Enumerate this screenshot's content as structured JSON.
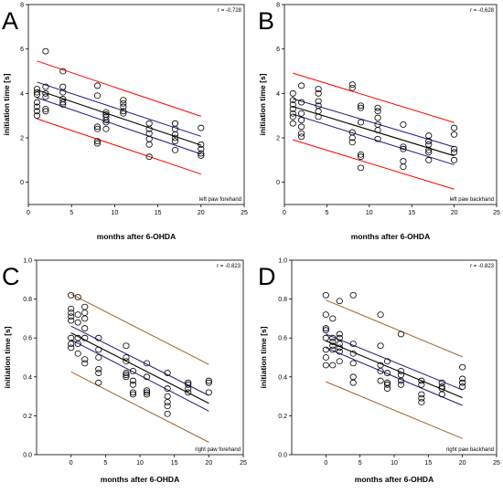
{
  "chart_data": [
    {
      "type": "scatter",
      "panel_letter": "A",
      "xlabel": "months after 6-OHDA",
      "ylabel": "initiation time [s]",
      "xlim": [
        0,
        25
      ],
      "ylim": [
        -1,
        8
      ],
      "xticks": [
        0,
        5,
        10,
        15,
        20,
        25
      ],
      "yticks": [
        0,
        2,
        4,
        6,
        8
      ],
      "xtick_labels": [
        "0",
        "5",
        "10",
        "15",
        "20",
        "25"
      ],
      "ytick_labels": [
        "0",
        "2",
        "4",
        "6",
        "8"
      ],
      "r_label": "r = -0,728",
      "annotation": "left paw forehand",
      "band_color": "#ff0000",
      "ci_color": "#1a1a80",
      "regression": {
        "intercept": 4.29,
        "slope": -0.131,
        "ci_half": [
          0.35,
          0.4
        ],
        "pi_half": 1.3,
        "x_range": [
          1,
          20
        ]
      },
      "points": [
        [
          1,
          4.2
        ],
        [
          1,
          4.05
        ],
        [
          1,
          3.95
        ],
        [
          1,
          3.6
        ],
        [
          1,
          3.4
        ],
        [
          1,
          3.2
        ],
        [
          1,
          3.0
        ],
        [
          2,
          5.9
        ],
        [
          2,
          4.3
        ],
        [
          2,
          4.0
        ],
        [
          2,
          3.85
        ],
        [
          2,
          3.3
        ],
        [
          2,
          3.2
        ],
        [
          4,
          5.0
        ],
        [
          4,
          4.3
        ],
        [
          4,
          4.05
        ],
        [
          4,
          3.75
        ],
        [
          4,
          3.6
        ],
        [
          4,
          3.5
        ],
        [
          8,
          4.35
        ],
        [
          8,
          3.9
        ],
        [
          8,
          2.5
        ],
        [
          8,
          2.4
        ],
        [
          8,
          1.85
        ],
        [
          8,
          1.75
        ],
        [
          9,
          3.15
        ],
        [
          9,
          3.05
        ],
        [
          9,
          2.95
        ],
        [
          9,
          2.8
        ],
        [
          9,
          2.7
        ],
        [
          9,
          2.4
        ],
        [
          11,
          3.7
        ],
        [
          11,
          3.55
        ],
        [
          11,
          3.4
        ],
        [
          11,
          3.2
        ],
        [
          11,
          3.1
        ],
        [
          14,
          2.65
        ],
        [
          14,
          2.4
        ],
        [
          14,
          2.2
        ],
        [
          14,
          1.95
        ],
        [
          14,
          1.7
        ],
        [
          14,
          1.15
        ],
        [
          17,
          2.65
        ],
        [
          17,
          2.4
        ],
        [
          17,
          2.15
        ],
        [
          17,
          2.0
        ],
        [
          17,
          1.85
        ],
        [
          17,
          1.45
        ],
        [
          20,
          2.45
        ],
        [
          20,
          1.7
        ],
        [
          20,
          1.5
        ],
        [
          20,
          1.3
        ],
        [
          20,
          1.2
        ]
      ]
    },
    {
      "type": "scatter",
      "panel_letter": "B",
      "xlabel": "months after 6-OHDA",
      "ylabel": "initiation time [s]",
      "xlim": [
        0,
        25
      ],
      "ylim": [
        -1,
        8
      ],
      "xticks": [
        0,
        5,
        10,
        15,
        20,
        25
      ],
      "yticks": [
        0,
        2,
        4,
        6,
        8
      ],
      "xtick_labels": [
        "0",
        "5",
        "10",
        "15",
        "20",
        "25"
      ],
      "ytick_labels": [
        "0",
        "2",
        "4",
        "6",
        "8"
      ],
      "r_label": "r = -0,628",
      "annotation": "left paw backhand",
      "band_color": "#ff0000",
      "ci_color": "#1a1a80",
      "regression": {
        "intercept": 3.53,
        "slope": -0.117,
        "ci_half": [
          0.35,
          0.4
        ],
        "pi_half": 1.5,
        "x_range": [
          1,
          20
        ]
      },
      "points": [
        [
          1,
          4.0
        ],
        [
          1,
          3.7
        ],
        [
          1,
          3.5
        ],
        [
          1,
          3.3
        ],
        [
          1,
          3.1
        ],
        [
          1,
          2.95
        ],
        [
          1,
          2.65
        ],
        [
          2,
          4.35
        ],
        [
          2,
          3.6
        ],
        [
          2,
          3.1
        ],
        [
          2,
          2.8
        ],
        [
          2,
          2.5
        ],
        [
          2,
          2.2
        ],
        [
          2,
          2.05
        ],
        [
          4,
          4.2
        ],
        [
          4,
          4.0
        ],
        [
          4,
          3.65
        ],
        [
          4,
          3.45
        ],
        [
          4,
          3.2
        ],
        [
          4,
          2.95
        ],
        [
          8,
          4.4
        ],
        [
          8,
          4.25
        ],
        [
          8,
          2.25
        ],
        [
          8,
          2.0
        ],
        [
          8,
          1.8
        ],
        [
          9,
          3.45
        ],
        [
          9,
          3.35
        ],
        [
          9,
          2.7
        ],
        [
          9,
          1.25
        ],
        [
          9,
          1.15
        ],
        [
          9,
          0.65
        ],
        [
          11,
          3.35
        ],
        [
          11,
          3.2
        ],
        [
          11,
          2.9
        ],
        [
          11,
          2.6
        ],
        [
          11,
          2.35
        ],
        [
          11,
          1.95
        ],
        [
          14,
          2.6
        ],
        [
          14,
          1.6
        ],
        [
          14,
          1.5
        ],
        [
          14,
          0.95
        ],
        [
          14,
          0.7
        ],
        [
          17,
          2.1
        ],
        [
          17,
          1.85
        ],
        [
          17,
          1.7
        ],
        [
          17,
          1.45
        ],
        [
          17,
          1.35
        ],
        [
          17,
          1.0
        ],
        [
          20,
          2.45
        ],
        [
          20,
          2.15
        ],
        [
          20,
          1.5
        ],
        [
          20,
          1.35
        ],
        [
          20,
          1.0
        ]
      ]
    },
    {
      "type": "scatter",
      "panel_letter": "C",
      "xlabel": "months after 6-OHDA",
      "ylabel": "initiation time [s]",
      "xlim": [
        -5,
        25
      ],
      "ylim": [
        0,
        1
      ],
      "xticks": [
        0,
        5,
        10,
        15,
        20,
        25
      ],
      "yticks": [
        0,
        0.2,
        0.4,
        0.6,
        0.8,
        1.0
      ],
      "xtick_labels": [
        "0",
        "5",
        "10",
        "15",
        "20",
        "25"
      ],
      "ytick_labels": [
        "0.0",
        "0.2",
        "0.4",
        "0.6",
        "0.8",
        "1.0"
      ],
      "r_label": "r = -0.823",
      "annotation": "right paw forehand",
      "band_color": "#a0622d",
      "ci_color": "#1a1a80",
      "regression": {
        "intercept": 0.626,
        "slope": -0.0181,
        "ci_half": [
          0.035,
          0.04
        ],
        "pi_half": 0.2,
        "x_range": [
          0,
          20
        ]
      },
      "points": [
        [
          0,
          0.82
        ],
        [
          0,
          0.75
        ],
        [
          0,
          0.73
        ],
        [
          0,
          0.71
        ],
        [
          0,
          0.69
        ],
        [
          0,
          0.6
        ],
        [
          0,
          0.57
        ],
        [
          0,
          0.55
        ],
        [
          1,
          0.81
        ],
        [
          1,
          0.72
        ],
        [
          1,
          0.68
        ],
        [
          1,
          0.6
        ],
        [
          1,
          0.57
        ],
        [
          1,
          0.52
        ],
        [
          2,
          0.76
        ],
        [
          2,
          0.73
        ],
        [
          2,
          0.7
        ],
        [
          2,
          0.65
        ],
        [
          2,
          0.6
        ],
        [
          2,
          0.49
        ],
        [
          2,
          0.47
        ],
        [
          4,
          0.6
        ],
        [
          4,
          0.54
        ],
        [
          4,
          0.5
        ],
        [
          4,
          0.44
        ],
        [
          4,
          0.42
        ],
        [
          4,
          0.37
        ],
        [
          8,
          0.56
        ],
        [
          8,
          0.5
        ],
        [
          8,
          0.48
        ],
        [
          8,
          0.42
        ],
        [
          8,
          0.41
        ],
        [
          8,
          0.4
        ],
        [
          9,
          0.43
        ],
        [
          9,
          0.38
        ],
        [
          9,
          0.36
        ],
        [
          9,
          0.32
        ],
        [
          9,
          0.31
        ],
        [
          11,
          0.47
        ],
        [
          11,
          0.4
        ],
        [
          11,
          0.33
        ],
        [
          11,
          0.32
        ],
        [
          11,
          0.31
        ],
        [
          14,
          0.42
        ],
        [
          14,
          0.34
        ],
        [
          14,
          0.3
        ],
        [
          14,
          0.27
        ],
        [
          14,
          0.25
        ],
        [
          14,
          0.21
        ],
        [
          17,
          0.37
        ],
        [
          17,
          0.36
        ],
        [
          17,
          0.34
        ],
        [
          17,
          0.32
        ],
        [
          20,
          0.38
        ],
        [
          20,
          0.37
        ],
        [
          20,
          0.32
        ]
      ]
    },
    {
      "type": "scatter",
      "panel_letter": "D",
      "xlabel": "months after 6-OHDA",
      "ylabel": "initiation time [s]",
      "xlim": [
        -5,
        25
      ],
      "ylim": [
        0,
        1
      ],
      "xticks": [
        0,
        5,
        10,
        15,
        20,
        25
      ],
      "yticks": [
        0,
        0.2,
        0.4,
        0.6,
        0.8,
        1.0
      ],
      "xtick_labels": [
        "0",
        "5",
        "10",
        "15",
        "20",
        "25"
      ],
      "ytick_labels": [
        "0.0",
        "0.2",
        "0.4",
        "0.6",
        "0.8",
        "1.0"
      ],
      "r_label": "r = -0.823",
      "annotation": "right paw backhand",
      "band_color": "#a0622d",
      "ci_color": "#1a1a80",
      "regression": {
        "intercept": 0.585,
        "slope": -0.0146,
        "ci_half": [
          0.035,
          0.04
        ],
        "pi_half": 0.21,
        "x_range": [
          0,
          20
        ]
      },
      "points": [
        [
          0,
          0.82
        ],
        [
          0,
          0.72
        ],
        [
          0,
          0.65
        ],
        [
          0,
          0.64
        ],
        [
          0,
          0.6
        ],
        [
          0,
          0.54
        ],
        [
          0,
          0.5
        ],
        [
          0,
          0.46
        ],
        [
          1,
          0.7
        ],
        [
          1,
          0.6
        ],
        [
          1,
          0.58
        ],
        [
          1,
          0.56
        ],
        [
          1,
          0.54
        ],
        [
          1,
          0.46
        ],
        [
          2,
          0.79
        ],
        [
          2,
          0.62
        ],
        [
          2,
          0.6
        ],
        [
          2,
          0.57
        ],
        [
          2,
          0.55
        ],
        [
          2,
          0.53
        ],
        [
          2,
          0.48
        ],
        [
          4,
          0.82
        ],
        [
          4,
          0.57
        ],
        [
          4,
          0.52
        ],
        [
          4,
          0.47
        ],
        [
          4,
          0.4
        ],
        [
          4,
          0.37
        ],
        [
          8,
          0.72
        ],
        [
          8,
          0.56
        ],
        [
          8,
          0.46
        ],
        [
          8,
          0.43
        ],
        [
          8,
          0.38
        ],
        [
          9,
          0.48
        ],
        [
          9,
          0.42
        ],
        [
          9,
          0.37
        ],
        [
          9,
          0.36
        ],
        [
          9,
          0.34
        ],
        [
          11,
          0.62
        ],
        [
          11,
          0.43
        ],
        [
          11,
          0.41
        ],
        [
          11,
          0.38
        ],
        [
          11,
          0.36
        ],
        [
          14,
          0.38
        ],
        [
          14,
          0.36
        ],
        [
          14,
          0.31
        ],
        [
          14,
          0.29
        ],
        [
          14,
          0.27
        ],
        [
          17,
          0.37
        ],
        [
          17,
          0.35
        ],
        [
          17,
          0.34
        ],
        [
          17,
          0.31
        ],
        [
          20,
          0.45
        ],
        [
          20,
          0.39
        ],
        [
          20,
          0.37
        ],
        [
          20,
          0.35
        ]
      ]
    }
  ]
}
